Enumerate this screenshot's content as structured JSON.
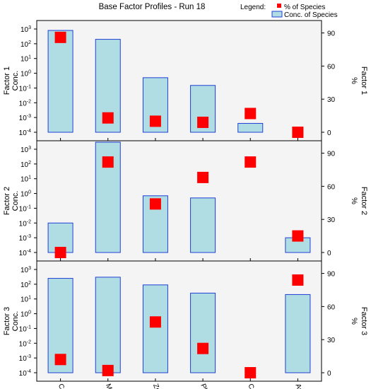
{
  "title": "Base Factor Profiles - Run 18",
  "legend": {
    "label": "Legend:",
    "pct_label": "% of Species",
    "conc_label": "Conc. of Species"
  },
  "colors": {
    "bar_fill": "#b0dde3",
    "bar_stroke": "#1f3fd6",
    "marker": "#ff0000",
    "panel_bg": "#f4f4f4",
    "axis": "#000000"
  },
  "chart_data": {
    "type": "bar",
    "categories": [
      "Cr",
      "Mn",
      "Zn",
      "Pb",
      "Cd",
      "As"
    ],
    "left_axis": {
      "scale": "log",
      "ylim": [
        0.0001,
        3000
      ],
      "ticks": [
        {
          "exp": 3,
          "label": "10"
        },
        {
          "exp": 2,
          "label": "10"
        },
        {
          "exp": 1,
          "label": "10"
        },
        {
          "exp": 0,
          "label": "10"
        },
        {
          "exp": -1,
          "label": "10"
        },
        {
          "exp": -2,
          "label": "10"
        },
        {
          "exp": -3,
          "label": "10"
        },
        {
          "exp": -4,
          "label": "10"
        }
      ]
    },
    "right_axis": {
      "scale": "linear",
      "ylim": [
        0,
        100
      ],
      "ticks": [
        0,
        30,
        60,
        90
      ]
    },
    "panels": [
      {
        "left_label_1": "Factor 1",
        "left_label_2": "Conc.",
        "right_label_1": "Factor 1",
        "right_label_2": "%",
        "conc": [
          800,
          200,
          0.5,
          0.15,
          0.0004,
          0
        ],
        "percent": [
          86,
          13,
          10,
          9,
          17,
          0
        ]
      },
      {
        "left_label_1": "Factor 2",
        "left_label_2": "Conc.",
        "right_label_1": "Factor 2",
        "right_label_2": "%",
        "conc": [
          0.01,
          3000,
          0.7,
          0.5,
          0,
          0.001
        ],
        "percent": [
          0,
          82,
          44,
          68,
          82,
          15
        ]
      },
      {
        "left_label_1": "Factor 3",
        "left_label_2": "Conc.",
        "right_label_1": "Factor 3",
        "right_label_2": "%",
        "conc": [
          250,
          300,
          90,
          25,
          0,
          20
        ],
        "percent": [
          12,
          2,
          46,
          22,
          0,
          84
        ]
      }
    ]
  }
}
